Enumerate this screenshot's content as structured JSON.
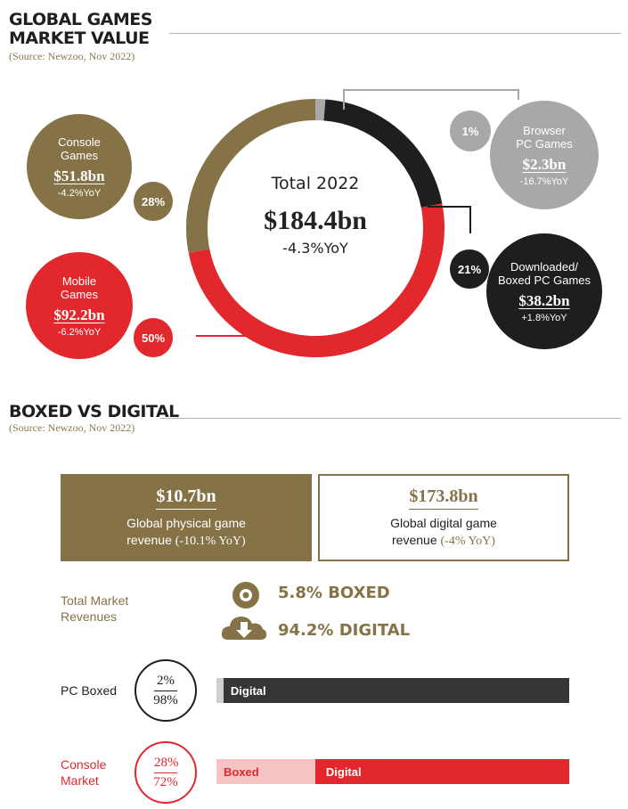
{
  "colors": {
    "console": "#857247",
    "mobile": "#e3282d",
    "downloaded": "#1e1e1e",
    "browser": "#a8a8a8",
    "accent_text": "#857247"
  },
  "section1": {
    "title_line1": "GLOBAL GAMES",
    "title_line2": "MARKET VALUE",
    "source": "(Source: Newzoo, Nov 2022)"
  },
  "donut": {
    "center_title": "Total 2022",
    "center_value": "$184.4bn",
    "center_yoy": "-4.3%YoY"
  },
  "segments": [
    {
      "key": "console",
      "name_line1": "Console",
      "name_line2": "Games",
      "value": "$51.8bn",
      "yoy": "-4.2%YoY",
      "share_label": "28%"
    },
    {
      "key": "browser",
      "name_line1": "Browser",
      "name_line2": "PC Games",
      "value": "$2.3bn",
      "yoy": "-16.7%YoY",
      "share_label": "1%"
    },
    {
      "key": "downloaded",
      "name_line1": "Downloaded/",
      "name_line2": "Boxed PC Games",
      "value": "$38.2bn",
      "yoy": "+1.8%YoY",
      "share_label": "21%"
    },
    {
      "key": "mobile",
      "name_line1": "Mobile",
      "name_line2": "Games",
      "value": "$92.2bn",
      "yoy": "-6.2%YoY",
      "share_label": "50%"
    }
  ],
  "chart_data": [
    {
      "type": "pie",
      "title": "GLOBAL GAMES MARKET VALUE",
      "categories": [
        "Browser PC Games",
        "Downloaded/Boxed PC Games",
        "Mobile Games",
        "Console Games"
      ],
      "values": [
        2.3,
        38.2,
        92.2,
        51.8
      ],
      "shares_percent": [
        1,
        21,
        50,
        28
      ],
      "value_labels": [
        "$2.3bn",
        "$38.2bn",
        "$92.2bn",
        "$51.8bn"
      ],
      "yoy": [
        "-16.7%YoY",
        "+1.8%YoY",
        "-6.2%YoY",
        "-4.2%YoY"
      ],
      "total": 184.4
    },
    {
      "type": "bar",
      "title": "BOXED VS DIGITAL",
      "categories": [
        "PC Boxed",
        "Console Market"
      ],
      "series": [
        {
          "name": "Boxed",
          "values": [
            2,
            28
          ]
        },
        {
          "name": "Digital",
          "values": [
            98,
            72
          ]
        }
      ]
    }
  ],
  "section2": {
    "title": "BOXED VS DIGITAL",
    "source": "(Source: Newzoo, Nov 2022)",
    "physical": {
      "value": "$10.7bn",
      "label1": "Global physical game",
      "label2": "revenue",
      "yoy": "(-10.1% YoY)"
    },
    "digital": {
      "value": "$173.8bn",
      "label1": "Global digital game",
      "label2": "revenue",
      "yoy": "(-4% YoY)"
    },
    "total_label_line1": "Total Market",
    "total_label_line2": "Revenues",
    "boxed_stat": "5.8% BOXED",
    "digital_stat": "94.2% DIGITAL",
    "pc": {
      "label": "PC Boxed",
      "top": "2%",
      "bottom": "98%",
      "bar_label": "Digital"
    },
    "console": {
      "label_line1": "Console",
      "label_line2": "Market",
      "top": "28%",
      "bottom": "72%",
      "boxed_label": "Boxed",
      "digital_label": "Digital"
    }
  }
}
